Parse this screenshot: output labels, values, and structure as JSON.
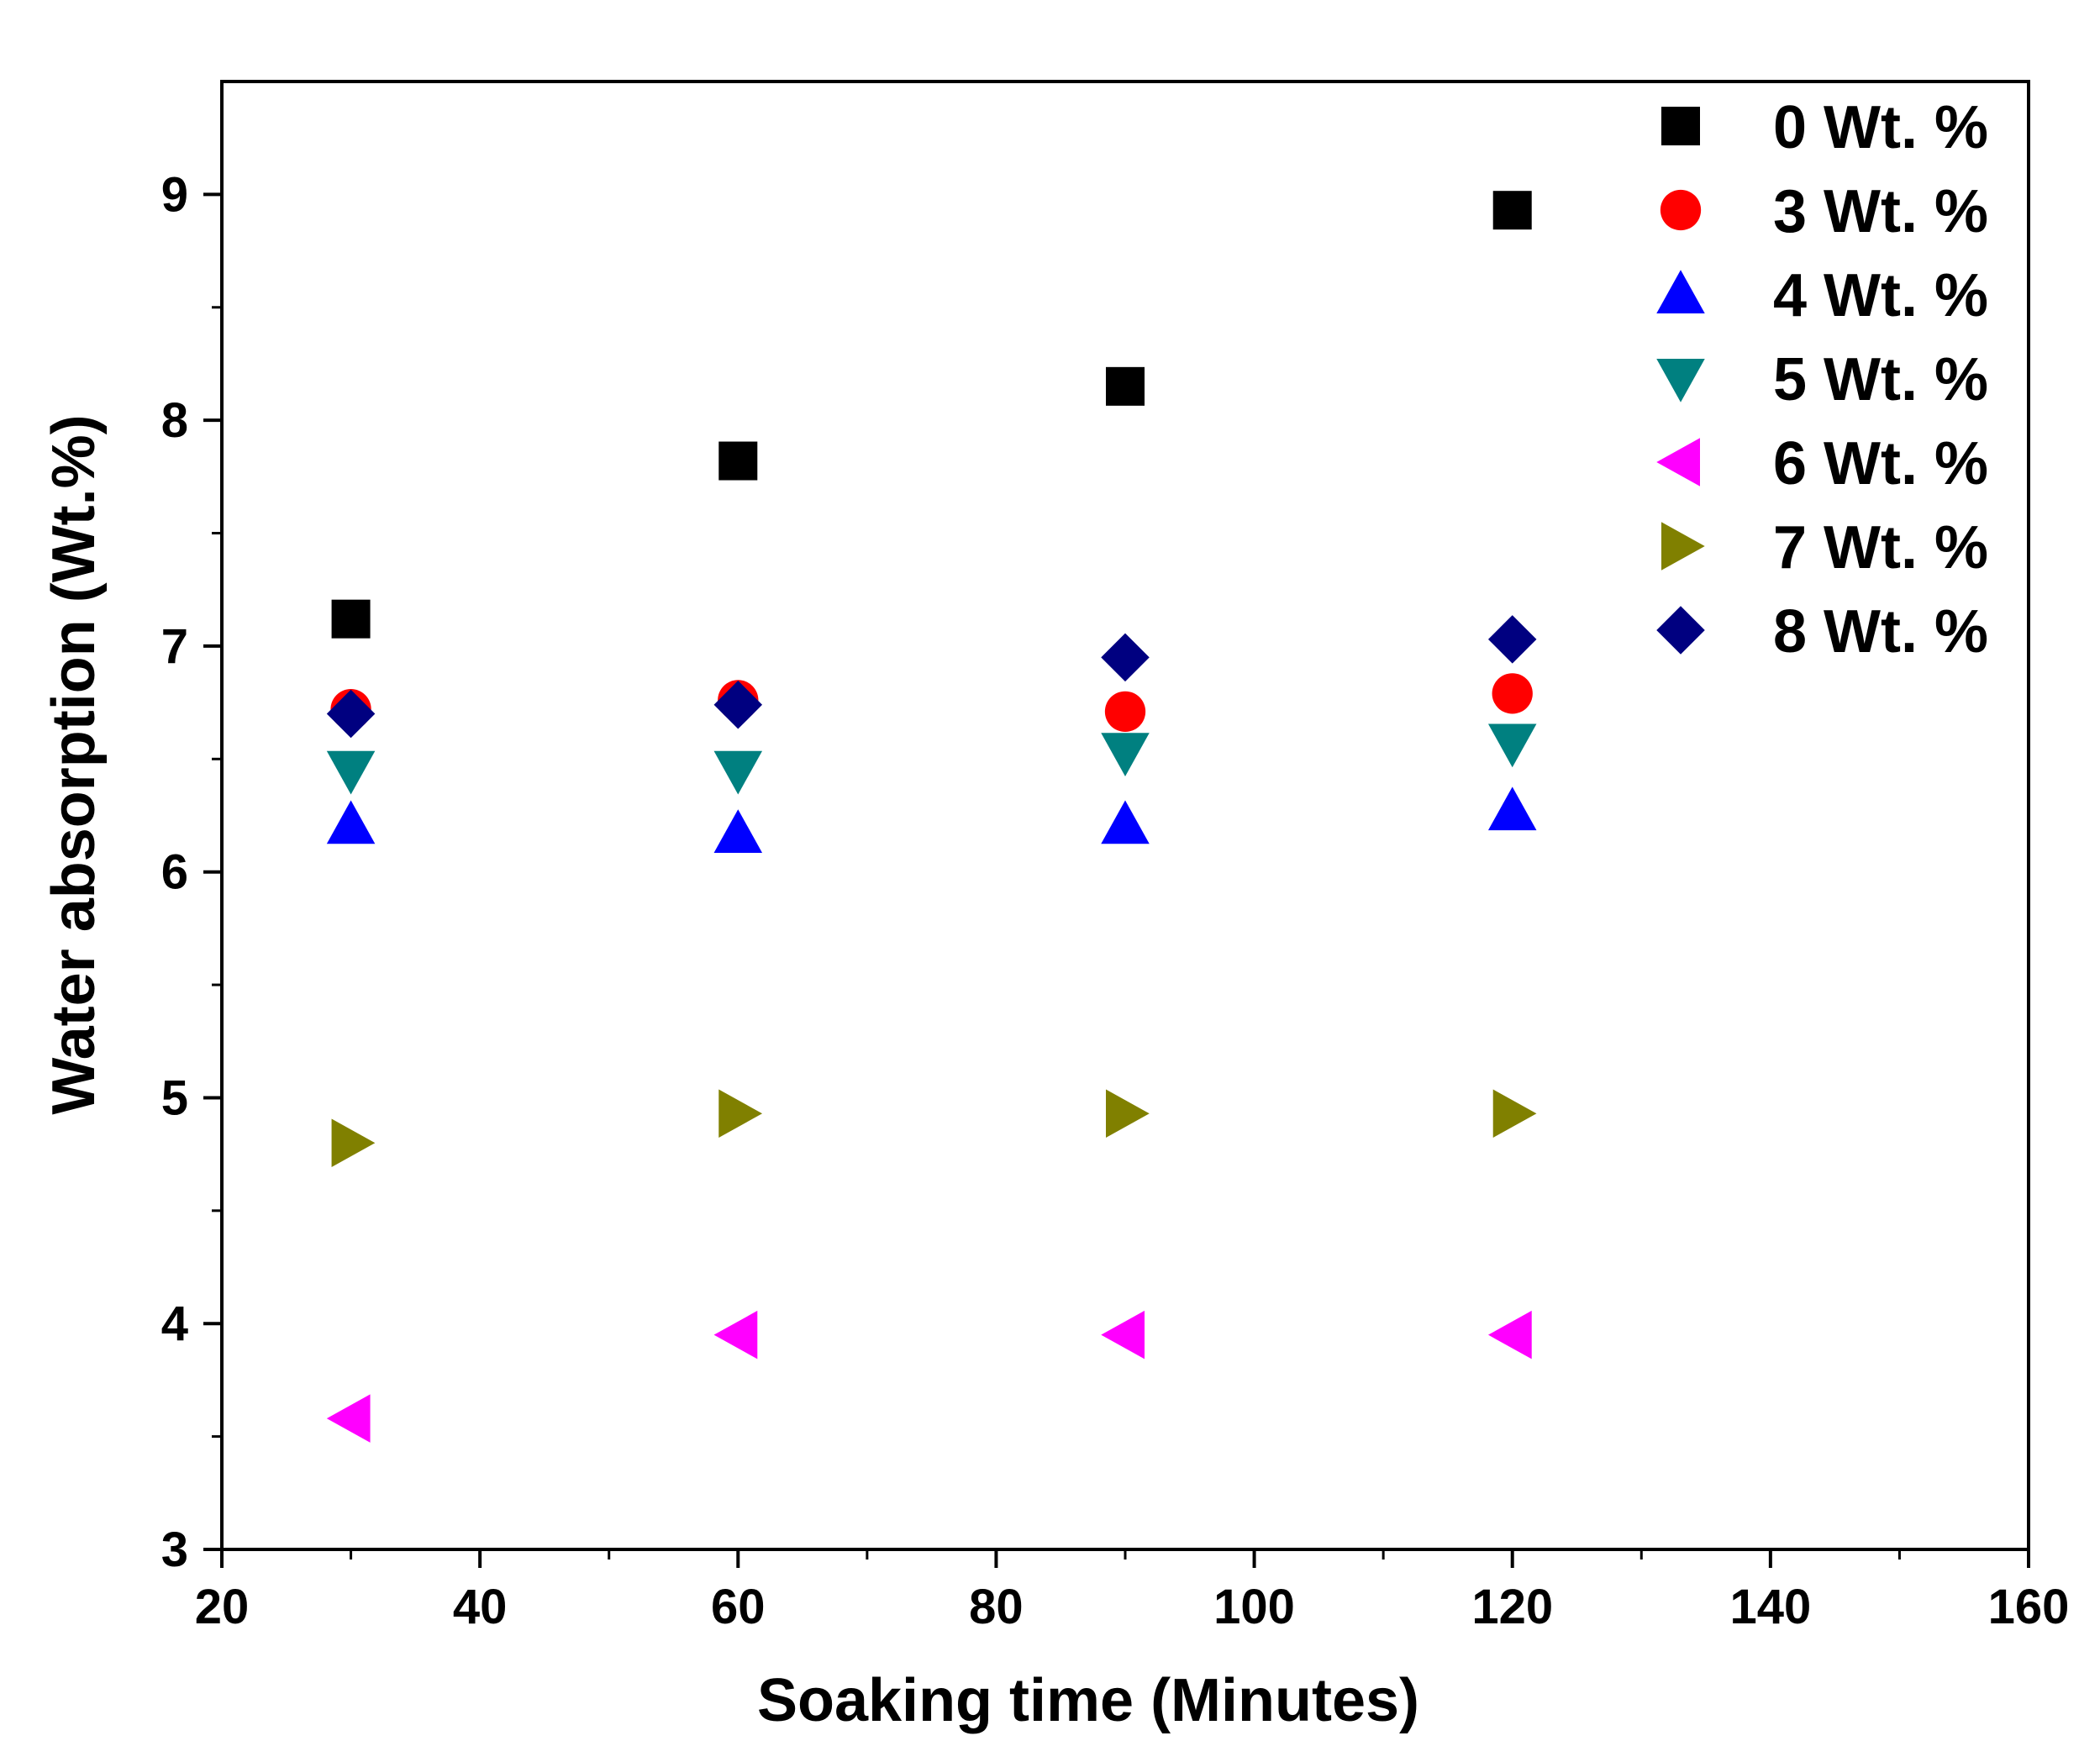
{
  "chart_data": {
    "type": "scatter",
    "title": "",
    "xlabel": "Soaking time (Minutes)",
    "ylabel": "Water absorption (Wt.%)",
    "xlim": [
      20,
      160
    ],
    "ylim": [
      3,
      9.5
    ],
    "x_ticks": [
      20,
      40,
      60,
      80,
      100,
      120,
      140,
      160
    ],
    "y_ticks": [
      3,
      4,
      5,
      6,
      7,
      8,
      9
    ],
    "x_tick_labels": [
      "20",
      "40",
      "60",
      "80",
      "100",
      "120",
      "140",
      "160"
    ],
    "y_tick_labels": [
      "3",
      "4",
      "5",
      "6",
      "7",
      "8",
      "9"
    ],
    "grid": false,
    "legend_position": "top-right",
    "series": [
      {
        "name": "0 Wt. %",
        "marker": "square",
        "color": "#000000",
        "x": [
          30,
          60,
          90,
          120
        ],
        "y": [
          7.12,
          7.82,
          8.15,
          8.93
        ]
      },
      {
        "name": "3 Wt. %",
        "marker": "circle",
        "color": "#ff0000",
        "x": [
          30,
          60,
          90,
          120
        ],
        "y": [
          6.72,
          6.76,
          6.71,
          6.79
        ]
      },
      {
        "name": "4 Wt. %",
        "marker": "triangle-up",
        "color": "#0000ff",
        "x": [
          30,
          60,
          90,
          120
        ],
        "y": [
          6.21,
          6.17,
          6.21,
          6.27
        ]
      },
      {
        "name": "5 Wt. %",
        "marker": "triangle-down",
        "color": "#008080",
        "x": [
          30,
          60,
          90,
          120
        ],
        "y": [
          6.45,
          6.45,
          6.53,
          6.57
        ]
      },
      {
        "name": "6 Wt. %",
        "marker": "triangle-left",
        "color": "#ff00ff",
        "x": [
          30,
          60,
          90,
          120
        ],
        "y": [
          3.58,
          3.95,
          3.95,
          3.95
        ]
      },
      {
        "name": "7 Wt. %",
        "marker": "triangle-right",
        "color": "#808000",
        "x": [
          30,
          60,
          90,
          120
        ],
        "y": [
          4.8,
          4.93,
          4.93,
          4.93
        ]
      },
      {
        "name": "8 Wt. %",
        "marker": "diamond",
        "color": "#000080",
        "x": [
          30,
          60,
          90,
          120
        ],
        "y": [
          6.7,
          6.74,
          6.95,
          7.03
        ]
      }
    ]
  }
}
